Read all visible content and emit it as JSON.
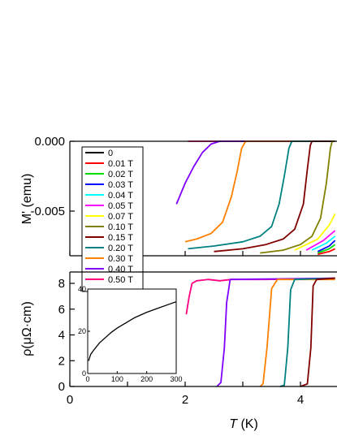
{
  "chart_data": [
    {
      "type": "line",
      "panel": "top",
      "ylabel": "M' (emu)",
      "xlim": [
        0,
        4.6
      ],
      "ylim": [
        -0.0082,
        0.0
      ],
      "yticks": [
        "0.000",
        "-0.005"
      ],
      "ytick_values": [
        0.0,
        -0.005
      ],
      "legend_position": "top-left",
      "series": [
        {
          "name": "0",
          "color": "#000000",
          "points": []
        },
        {
          "name": "0.01 T",
          "color": "#ff0000",
          "points": [
            [
              4.3,
              -0.0081
            ],
            [
              4.5,
              -0.0079
            ],
            [
              4.6,
              -0.0077
            ]
          ]
        },
        {
          "name": "0.02 T",
          "color": "#00dd00",
          "points": [
            [
              4.3,
              -0.008
            ],
            [
              4.5,
              -0.0077
            ],
            [
              4.6,
              -0.0074
            ]
          ]
        },
        {
          "name": "0.03 T",
          "color": "#0000ff",
          "points": [
            [
              4.3,
              -0.0079
            ],
            [
              4.5,
              -0.0075
            ],
            [
              4.6,
              -0.0071
            ]
          ]
        },
        {
          "name": "0.04 T",
          "color": "#00ffff",
          "points": [
            [
              4.2,
              -0.0078
            ],
            [
              4.45,
              -0.0073
            ],
            [
              4.6,
              -0.0068
            ]
          ]
        },
        {
          "name": "0.05 T",
          "color": "#ff00ff",
          "points": [
            [
              4.1,
              -0.0078
            ],
            [
              4.4,
              -0.0071
            ],
            [
              4.6,
              -0.0064
            ]
          ]
        },
        {
          "name": "0.07 T",
          "color": "#ffff00",
          "points": [
            [
              3.9,
              -0.0078
            ],
            [
              4.3,
              -0.007
            ],
            [
              4.5,
              -0.006
            ],
            [
              4.6,
              -0.0052
            ]
          ]
        },
        {
          "name": "0.10 T",
          "color": "#808000",
          "points": [
            [
              3.3,
              -0.008
            ],
            [
              3.7,
              -0.0078
            ],
            [
              4.0,
              -0.0074
            ],
            [
              4.2,
              -0.0068
            ],
            [
              4.35,
              -0.0055
            ],
            [
              4.45,
              -0.003
            ],
            [
              4.52,
              -0.0005
            ],
            [
              4.55,
              0.0
            ],
            [
              4.6,
              0.0
            ]
          ]
        },
        {
          "name": "0.15 T",
          "color": "#800000",
          "points": [
            [
              2.5,
              -0.0079
            ],
            [
              3.0,
              -0.0077
            ],
            [
              3.4,
              -0.0074
            ],
            [
              3.7,
              -0.007
            ],
            [
              3.9,
              -0.0063
            ],
            [
              4.05,
              -0.0045
            ],
            [
              4.12,
              -0.002
            ],
            [
              4.17,
              -0.0003
            ],
            [
              4.2,
              0.0
            ],
            [
              4.6,
              0.0
            ]
          ]
        },
        {
          "name": "0.20 T",
          "color": "#008080",
          "points": [
            [
              2.05,
              -0.0077
            ],
            [
              2.5,
              -0.0075
            ],
            [
              3.0,
              -0.0072
            ],
            [
              3.3,
              -0.0068
            ],
            [
              3.5,
              -0.0061
            ],
            [
              3.63,
              -0.0045
            ],
            [
              3.72,
              -0.0025
            ],
            [
              3.8,
              -0.0005
            ],
            [
              3.85,
              0.0
            ],
            [
              4.6,
              0.0
            ]
          ]
        },
        {
          "name": "0.30 T",
          "color": "#ff8000",
          "points": [
            [
              2.0,
              -0.0072
            ],
            [
              2.2,
              -0.007
            ],
            [
              2.45,
              -0.0066
            ],
            [
              2.65,
              -0.0058
            ],
            [
              2.8,
              -0.004
            ],
            [
              2.9,
              -0.0022
            ],
            [
              2.98,
              -0.0005
            ],
            [
              3.05,
              0.0
            ],
            [
              4.6,
              0.0
            ]
          ]
        },
        {
          "name": "0.40 T",
          "color": "#8000ff",
          "points": [
            [
              1.85,
              -0.0045
            ],
            [
              2.0,
              -0.003
            ],
            [
              2.15,
              -0.0018
            ],
            [
              2.3,
              -0.0008
            ],
            [
              2.45,
              -0.0002
            ],
            [
              2.6,
              0.0
            ],
            [
              4.6,
              0.0
            ]
          ]
        },
        {
          "name": "0.50 T",
          "color": "#ff0080",
          "points": [
            [
              2.05,
              0.0
            ],
            [
              4.6,
              0.0
            ]
          ]
        }
      ]
    },
    {
      "type": "line",
      "panel": "bottom",
      "xlabel": "T (K)",
      "ylabel": "ρ(μΩ·cm)",
      "xlim": [
        0,
        4.6
      ],
      "ylim": [
        0,
        9
      ],
      "xticks": [
        "0",
        "2",
        "4"
      ],
      "xtick_values": [
        0,
        2,
        4
      ],
      "yticks": [
        "0",
        "2",
        "4",
        "6",
        "8"
      ],
      "ytick_values": [
        0,
        2,
        4,
        6,
        8
      ],
      "series": [
        {
          "name": "0.15 T",
          "color": "#800000",
          "points": [
            [
              4.0,
              0.0
            ],
            [
              4.12,
              0.2
            ],
            [
              4.18,
              3.0
            ],
            [
              4.22,
              7.8
            ],
            [
              4.28,
              8.3
            ],
            [
              4.6,
              8.4
            ]
          ]
        },
        {
          "name": "0.20 T",
          "color": "#008080",
          "points": [
            [
              3.65,
              0.0
            ],
            [
              3.72,
              0.1
            ],
            [
              3.78,
              3.0
            ],
            [
              3.83,
              7.5
            ],
            [
              3.9,
              8.3
            ],
            [
              4.6,
              8.4
            ]
          ]
        },
        {
          "name": "0.30 T",
          "color": "#ff8000",
          "points": [
            [
              3.3,
              0.0
            ],
            [
              3.35,
              0.2
            ],
            [
              3.42,
              3.0
            ],
            [
              3.5,
              7.6
            ],
            [
              3.6,
              8.3
            ],
            [
              4.6,
              8.3
            ]
          ]
        },
        {
          "name": "0.40 T",
          "color": "#8000ff",
          "points": [
            [
              2.55,
              0.0
            ],
            [
              2.62,
              0.3
            ],
            [
              2.68,
              3.0
            ],
            [
              2.72,
              6.5
            ],
            [
              2.78,
              8.3
            ],
            [
              4.6,
              8.4
            ]
          ]
        },
        {
          "name": "0.50 T",
          "color": "#ff0080",
          "points": [
            [
              2.02,
              5.6
            ],
            [
              2.07,
              7.0
            ],
            [
              2.12,
              8.0
            ],
            [
              2.2,
              8.2
            ],
            [
              2.4,
              8.3
            ],
            [
              2.6,
              8.2
            ],
            [
              2.8,
              8.3
            ],
            [
              3.0,
              8.3
            ],
            [
              3.4,
              8.3
            ],
            [
              4.6,
              8.4
            ]
          ]
        }
      ]
    },
    {
      "type": "line",
      "panel": "inset",
      "xlim": [
        0,
        300
      ],
      "ylim": [
        0,
        40
      ],
      "xticks": [
        "0",
        "100",
        "200",
        "300"
      ],
      "xtick_values": [
        0,
        100,
        200,
        300
      ],
      "yticks": [
        "0",
        "20",
        "40"
      ],
      "ytick_values": [
        0,
        20,
        40
      ],
      "series": [
        {
          "color": "#000000",
          "points": [
            [
              3,
              6
            ],
            [
              10,
              9
            ],
            [
              20,
              11
            ],
            [
              40,
              14.5
            ],
            [
              60,
              17
            ],
            [
              80,
              19.5
            ],
            [
              100,
              21.5
            ],
            [
              130,
              24
            ],
            [
              160,
              26.5
            ],
            [
              200,
              29
            ],
            [
              240,
              31
            ],
            [
              280,
              33
            ],
            [
              300,
              34
            ]
          ]
        }
      ]
    }
  ]
}
